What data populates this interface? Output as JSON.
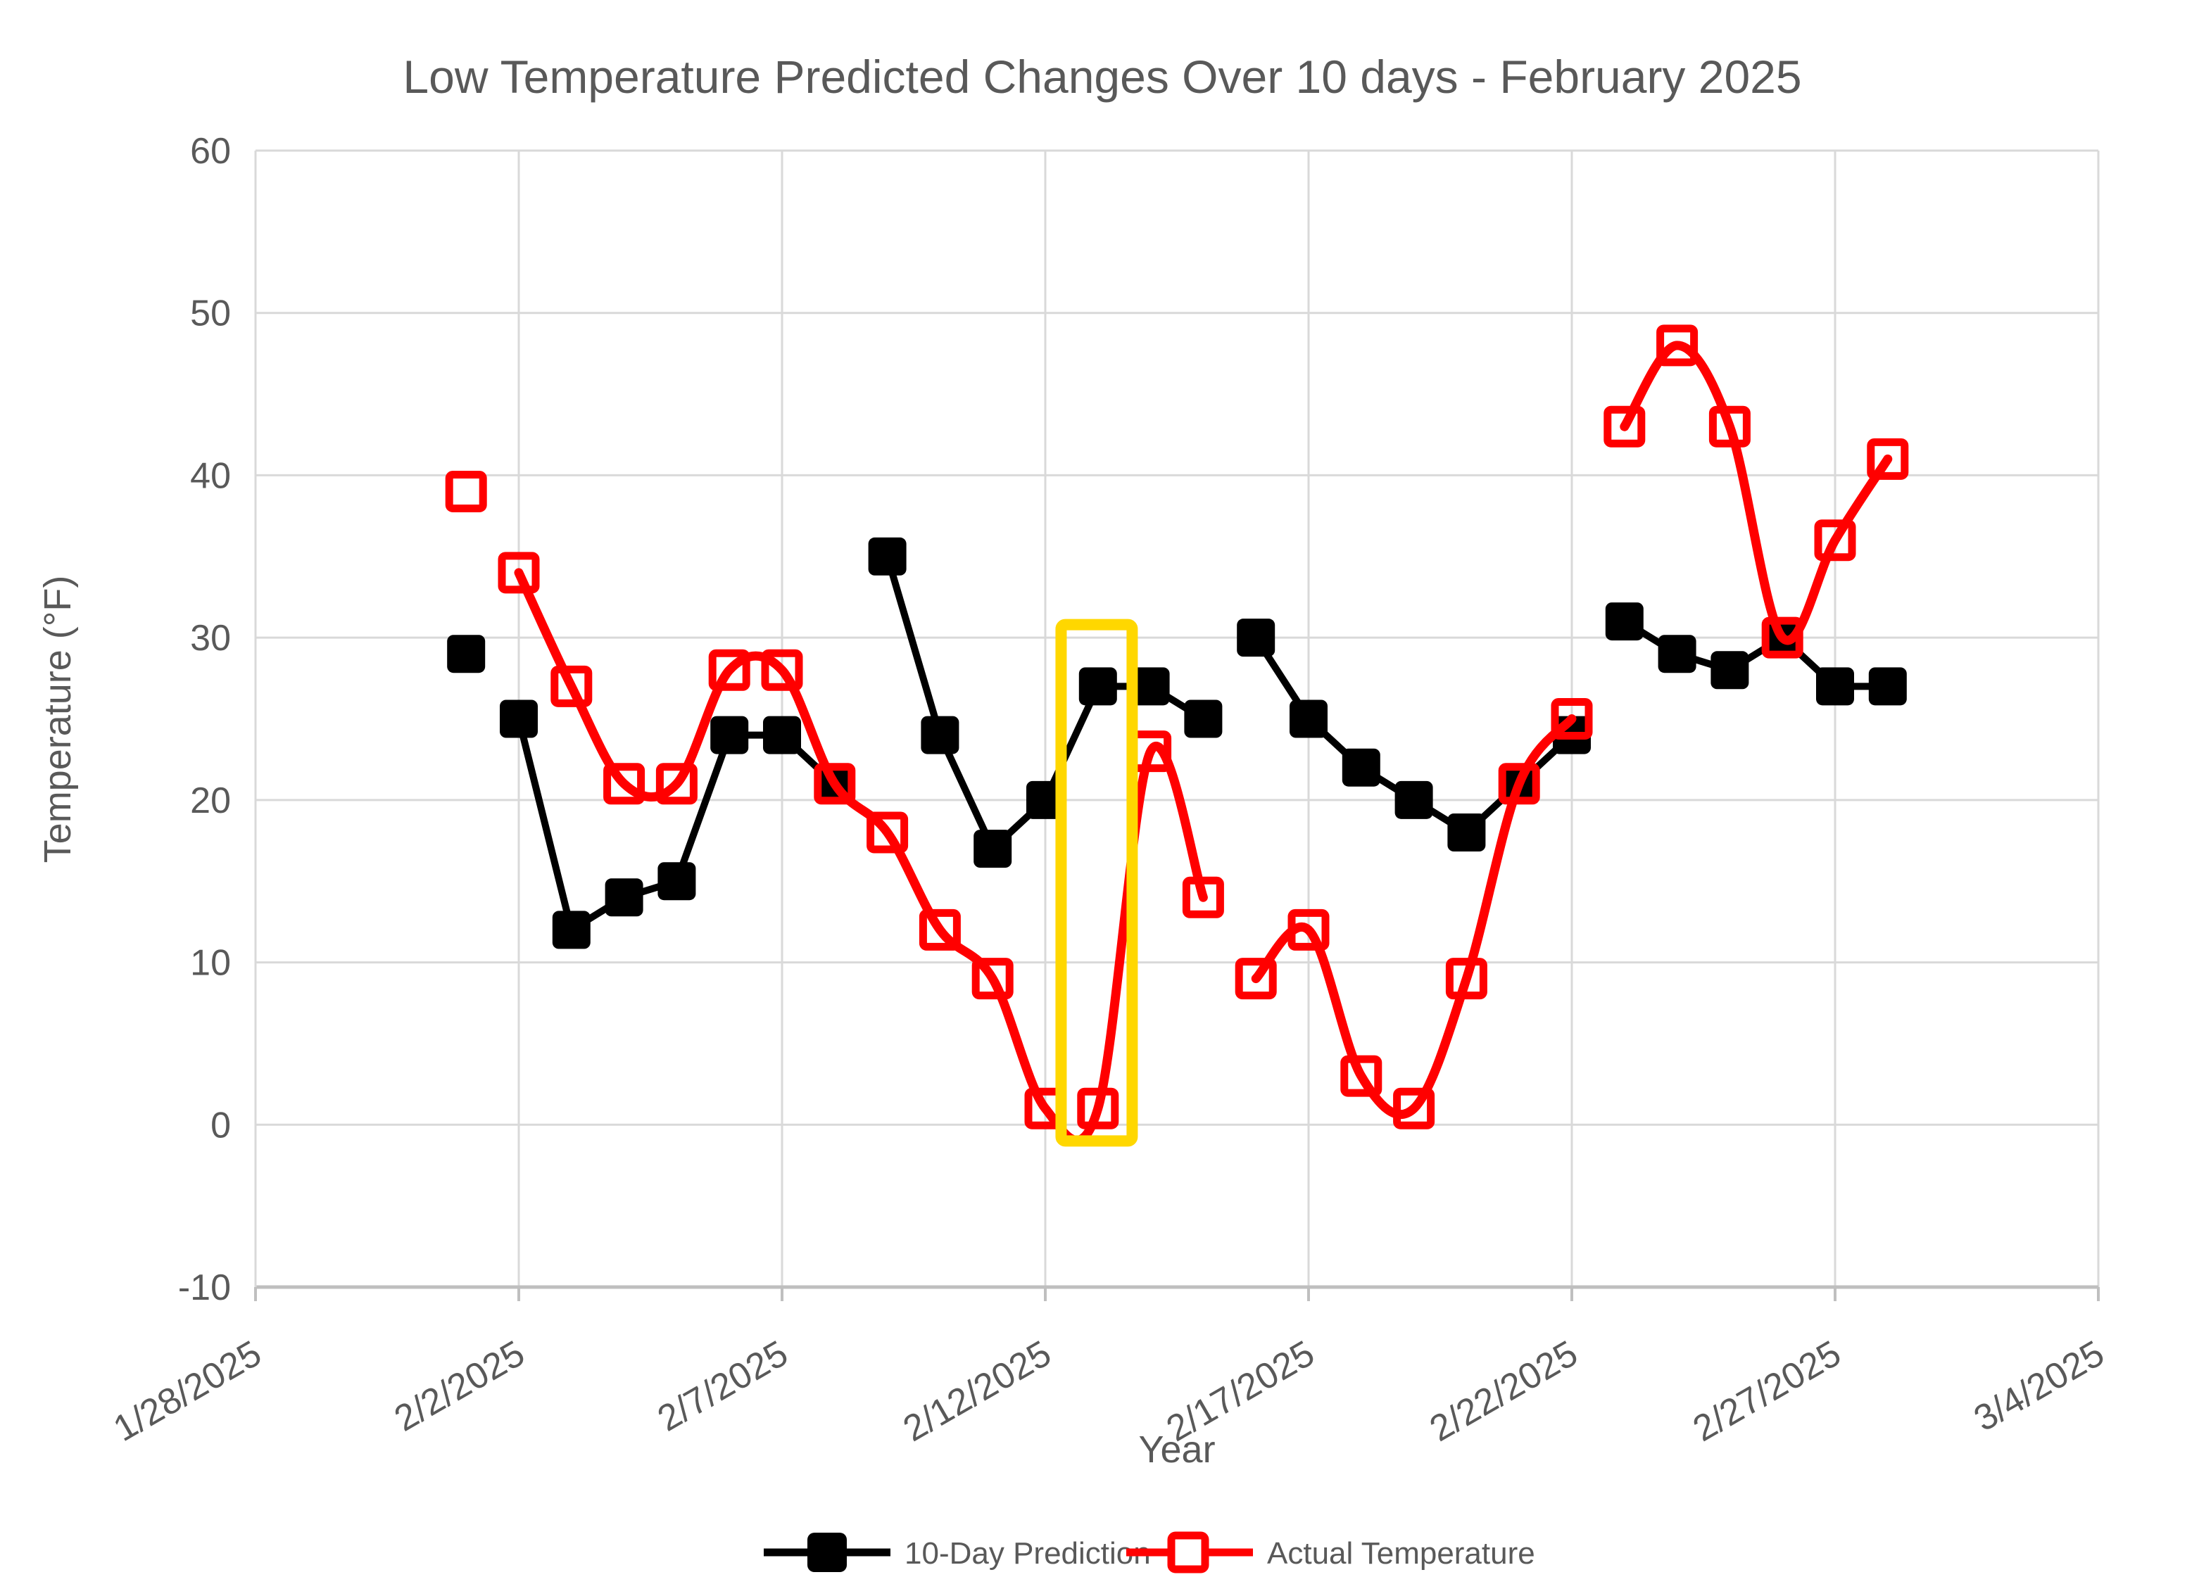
{
  "chart_data": {
    "type": "line",
    "title": "Low Temperature Predicted Changes Over 10 days - February 2025",
    "xlabel": "Year",
    "ylabel": "Temperature (°F)",
    "ylim": [
      -10,
      60
    ],
    "y_ticks": [
      60,
      50,
      40,
      30,
      20,
      10,
      0,
      -10
    ],
    "x_ticks": [
      "1/28/2025",
      "2/2/2025",
      "2/7/2025",
      "2/12/2025",
      "2/17/2025",
      "2/22/2025",
      "2/27/2025",
      "3/4/2025"
    ],
    "x_tick_days": [
      0,
      5,
      10,
      15,
      20,
      25,
      30,
      35
    ],
    "x_range_days": 35,
    "grid": true,
    "legend_position": "bottom",
    "series": [
      {
        "name": "10-Day Prediction",
        "color": "#000000",
        "marker": "filled-square",
        "line_style": "straight",
        "segments": [
          [
            {
              "date": "2/1/2025",
              "day": 4,
              "value": 29
            }
          ],
          [
            {
              "date": "2/2/2025",
              "day": 5,
              "value": 25
            },
            {
              "date": "2/3/2025",
              "day": 6,
              "value": 12
            },
            {
              "date": "2/4/2025",
              "day": 7,
              "value": 14
            },
            {
              "date": "2/5/2025",
              "day": 8,
              "value": 15
            },
            {
              "date": "2/6/2025",
              "day": 9,
              "value": 24
            },
            {
              "date": "2/7/2025",
              "day": 10,
              "value": 24
            },
            {
              "date": "2/8/2025",
              "day": 11,
              "value": 21
            }
          ],
          [
            {
              "date": "2/9/2025",
              "day": 12,
              "value": 35
            },
            {
              "date": "2/10/2025",
              "day": 13,
              "value": 24
            },
            {
              "date": "2/11/2025",
              "day": 14,
              "value": 17
            },
            {
              "date": "2/12/2025",
              "day": 15,
              "value": 20
            },
            {
              "date": "2/13/2025",
              "day": 16,
              "value": 27
            },
            {
              "date": "2/14/2025",
              "day": 17,
              "value": 27
            },
            {
              "date": "2/15/2025",
              "day": 18,
              "value": 25
            }
          ],
          [
            {
              "date": "2/16/2025",
              "day": 19,
              "value": 30
            },
            {
              "date": "2/17/2025",
              "day": 20,
              "value": 25
            },
            {
              "date": "2/18/2025",
              "day": 21,
              "value": 22
            },
            {
              "date": "2/19/2025",
              "day": 22,
              "value": 20
            },
            {
              "date": "2/20/2025",
              "day": 23,
              "value": 18
            },
            {
              "date": "2/21/2025",
              "day": 24,
              "value": 21
            },
            {
              "date": "2/22/2025",
              "day": 25,
              "value": 24
            }
          ],
          [
            {
              "date": "2/23/2025",
              "day": 26,
              "value": 31
            },
            {
              "date": "2/24/2025",
              "day": 27,
              "value": 29
            },
            {
              "date": "2/25/2025",
              "day": 28,
              "value": 28
            },
            {
              "date": "2/26/2025",
              "day": 29,
              "value": 30
            },
            {
              "date": "2/27/2025",
              "day": 30,
              "value": 27
            },
            {
              "date": "2/28/2025",
              "day": 31,
              "value": 27
            }
          ]
        ]
      },
      {
        "name": "Actual Temperature",
        "color": "#FF0000",
        "marker": "open-square",
        "line_style": "smooth",
        "segments": [
          [
            {
              "date": "2/1/2025",
              "day": 4,
              "value": 39
            }
          ],
          [
            {
              "date": "2/2/2025",
              "day": 5,
              "value": 34
            },
            {
              "date": "2/3/2025",
              "day": 6,
              "value": 27
            },
            {
              "date": "2/4/2025",
              "day": 7,
              "value": 21
            },
            {
              "date": "2/5/2025",
              "day": 8,
              "value": 21
            },
            {
              "date": "2/6/2025",
              "day": 9,
              "value": 28
            },
            {
              "date": "2/7/2025",
              "day": 10,
              "value": 28
            },
            {
              "date": "2/8/2025",
              "day": 11,
              "value": 21
            },
            {
              "date": "2/9/2025",
              "day": 12,
              "value": 18
            },
            {
              "date": "2/10/2025",
              "day": 13,
              "value": 12
            },
            {
              "date": "2/11/2025",
              "day": 14,
              "value": 9
            },
            {
              "date": "2/12/2025",
              "day": 15,
              "value": 1
            },
            {
              "date": "2/13/2025",
              "day": 16,
              "value": 1
            },
            {
              "date": "2/14/2025",
              "day": 17,
              "value": 23
            },
            {
              "date": "2/15/2025",
              "day": 18,
              "value": 14
            }
          ],
          [
            {
              "date": "2/16/2025",
              "day": 19,
              "value": 9
            },
            {
              "date": "2/17/2025",
              "day": 20,
              "value": 12
            },
            {
              "date": "2/18/2025",
              "day": 21,
              "value": 3
            },
            {
              "date": "2/19/2025",
              "day": 22,
              "value": 1
            },
            {
              "date": "2/20/2025",
              "day": 23,
              "value": 9
            },
            {
              "date": "2/21/2025",
              "day": 24,
              "value": 21
            },
            {
              "date": "2/22/2025",
              "day": 25,
              "value": 25
            }
          ],
          [
            {
              "date": "2/23/2025",
              "day": 26,
              "value": 43
            },
            {
              "date": "2/24/2025",
              "day": 27,
              "value": 48
            },
            {
              "date": "2/25/2025",
              "day": 28,
              "value": 43
            },
            {
              "date": "2/26/2025",
              "day": 29,
              "value": 30
            },
            {
              "date": "2/27/2025",
              "day": 30,
              "value": 36
            },
            {
              "date": "2/28/2025",
              "day": 31,
              "value": 41
            }
          ]
        ]
      }
    ],
    "annotation": {
      "type": "highlight-box",
      "highlighted_date": "2/13/2025",
      "color": "#FFD700",
      "x_day_range": [
        15.3,
        16.65
      ],
      "y_value_range": [
        -1,
        30.8
      ]
    }
  },
  "colors": {
    "text": "#595959",
    "gridline": "#D9D9D9",
    "axis_line": "#BFBFBF",
    "series_prediction": "#000000",
    "series_actual": "#FF0000",
    "highlight": "#FFD700",
    "background": "#FFFFFF"
  }
}
